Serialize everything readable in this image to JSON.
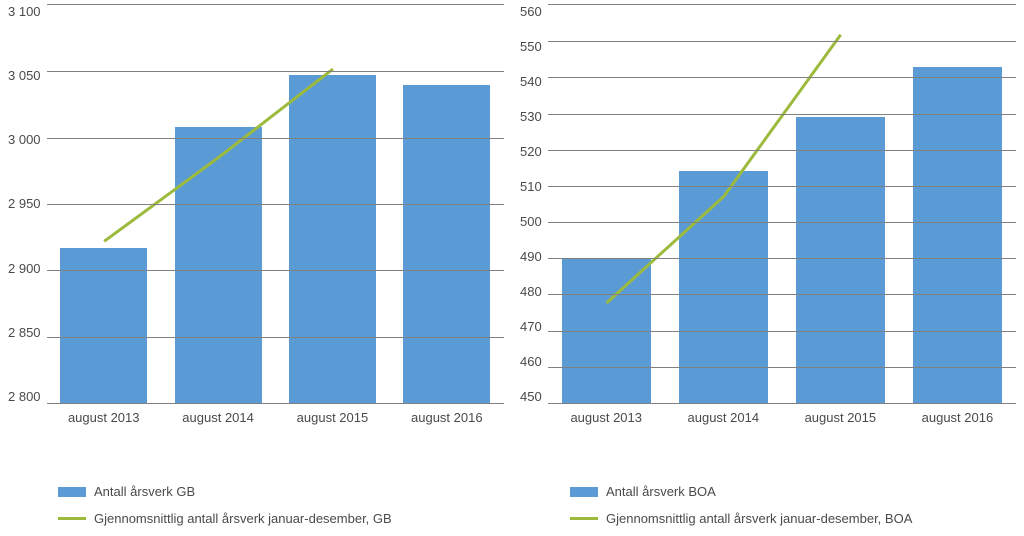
{
  "left_chart": {
    "type": "bar+line",
    "categories": [
      "august 2013",
      "august 2014",
      "august 2015",
      "august 2016"
    ],
    "bar_values": [
      2917,
      3008,
      3047,
      3040
    ],
    "line_values": [
      2945,
      3000,
      3058
    ],
    "ylim": [
      2800,
      3100
    ],
    "ytick_step": 50,
    "yticks": [
      "3 100",
      "3 050",
      "3 000",
      "2 950",
      "2 900",
      "2 850",
      "2 800"
    ],
    "bar_color": "#5b9bd5",
    "line_color": "#9cba3c",
    "line_width": 3,
    "bar_width_pct": 19,
    "grid_color": "#808080",
    "background_color": "#ffffff",
    "label_fontsize": 13,
    "label_color": "#4a4a4a",
    "legend_bar": "Antall årsverk GB",
    "legend_line": "Gjennomsnittlig antall årsverk januar-desember, GB"
  },
  "right_chart": {
    "type": "bar+line",
    "categories": [
      "august 2013",
      "august 2014",
      "august 2015",
      "august 2016"
    ],
    "bar_values": [
      490,
      514,
      529,
      543
    ],
    "line_values": [
      490,
      515,
      553
    ],
    "ylim": [
      450,
      560
    ],
    "ytick_step": 10,
    "yticks": [
      "560",
      "550",
      "540",
      "530",
      "520",
      "510",
      "500",
      "490",
      "480",
      "470",
      "460",
      "450"
    ],
    "bar_color": "#5b9bd5",
    "line_color": "#9cba3c",
    "line_width": 3,
    "bar_width_pct": 19,
    "grid_color": "#808080",
    "background_color": "#ffffff",
    "label_fontsize": 13,
    "label_color": "#4a4a4a",
    "legend_bar": "Antall årsverk BOA",
    "legend_line": "Gjennomsnittlig antall årsverk januar-desember, BOA"
  }
}
